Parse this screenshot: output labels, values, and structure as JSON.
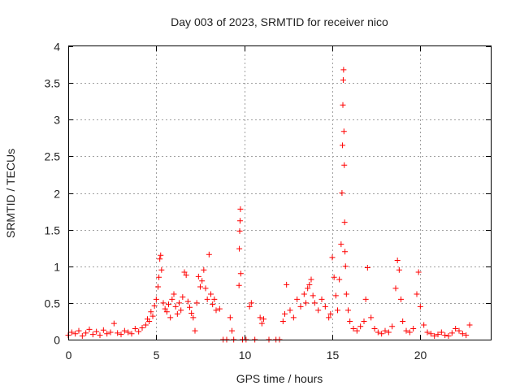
{
  "chart_data": {
    "type": "scatter",
    "title": "Day 003 of 2023, SRMTID for receiver nico",
    "xlabel": "GPS time / hours",
    "ylabel": "SRMTID / TECUs",
    "xlim": [
      0,
      24
    ],
    "ylim": [
      0,
      4
    ],
    "xticks": [
      0,
      5,
      10,
      15,
      20
    ],
    "xtick_labels": [
      "0",
      "5",
      "10",
      "15",
      "20"
    ],
    "yticks": [
      0,
      0.5,
      1,
      1.5,
      2,
      2.5,
      3,
      3.5,
      4
    ],
    "ytick_labels": [
      "0",
      "0.5",
      "1",
      "1.5",
      "2",
      "2.5",
      "3",
      "3.5",
      "4"
    ],
    "grid": true,
    "marker": "+",
    "series": [
      {
        "name": "SRMTID",
        "color": "#ff0000",
        "x": [
          0.0,
          0.2,
          0.4,
          0.6,
          0.8,
          1.0,
          1.2,
          1.4,
          1.6,
          1.8,
          2.0,
          2.2,
          2.4,
          2.6,
          2.8,
          3.0,
          3.2,
          3.4,
          3.6,
          3.8,
          4.0,
          4.2,
          4.4,
          4.5,
          4.6,
          4.7,
          4.8,
          4.9,
          5.0,
          5.1,
          5.15,
          5.2,
          5.25,
          5.3,
          5.4,
          5.5,
          5.6,
          5.7,
          5.8,
          5.9,
          6.0,
          6.1,
          6.2,
          6.3,
          6.4,
          6.5,
          6.6,
          6.7,
          6.8,
          6.9,
          7.0,
          7.1,
          7.2,
          7.3,
          7.4,
          7.5,
          7.6,
          7.7,
          7.8,
          7.9,
          8.0,
          8.1,
          8.2,
          8.3,
          8.4,
          8.6,
          9.2,
          9.3,
          9.7,
          9.72,
          9.74,
          9.76,
          9.78,
          9.8,
          10.3,
          10.4,
          10.9,
          11.0,
          11.1,
          12.2,
          12.3,
          12.4,
          12.6,
          12.8,
          13.0,
          13.2,
          13.4,
          13.5,
          13.6,
          13.7,
          13.8,
          13.9,
          14.0,
          14.2,
          14.4,
          14.6,
          14.8,
          14.9,
          15.0,
          15.1,
          15.2,
          15.3,
          15.4,
          15.5,
          15.55,
          15.58,
          15.6,
          15.62,
          15.64,
          15.66,
          15.68,
          15.7,
          15.72,
          15.75,
          15.8,
          15.9,
          16.0,
          16.2,
          16.4,
          16.6,
          16.8,
          16.9,
          17.0,
          17.2,
          17.4,
          17.6,
          17.8,
          18.0,
          18.2,
          18.4,
          18.6,
          18.7,
          18.8,
          18.9,
          19.0,
          19.2,
          19.4,
          19.6,
          19.8,
          19.9,
          20.0,
          20.2,
          20.4,
          20.6,
          20.8,
          21.0,
          21.2,
          21.4,
          21.6,
          21.8,
          22.0,
          22.2,
          22.4,
          22.6,
          22.8,
          8.8,
          9.0,
          9.4,
          9.9,
          10.1,
          10.6,
          11.4,
          11.8,
          12.0
        ],
        "y": [
          0.06,
          0.1,
          0.08,
          0.12,
          0.05,
          0.09,
          0.14,
          0.07,
          0.11,
          0.06,
          0.13,
          0.08,
          0.1,
          0.22,
          0.09,
          0.07,
          0.12,
          0.1,
          0.08,
          0.15,
          0.11,
          0.16,
          0.2,
          0.28,
          0.25,
          0.38,
          0.32,
          0.46,
          0.55,
          0.72,
          0.85,
          1.1,
          1.15,
          0.95,
          0.5,
          0.42,
          0.38,
          0.48,
          0.3,
          0.55,
          0.62,
          0.45,
          0.35,
          0.5,
          0.4,
          0.58,
          0.92,
          0.88,
          0.52,
          0.44,
          0.36,
          0.3,
          0.12,
          0.5,
          0.86,
          0.72,
          0.8,
          0.95,
          0.7,
          0.55,
          1.16,
          0.62,
          0.48,
          0.55,
          0.4,
          0.42,
          0.3,
          0.12,
          0.74,
          1.24,
          1.48,
          1.62,
          1.78,
          0.9,
          0.45,
          0.5,
          0.3,
          0.22,
          0.28,
          0.25,
          0.35,
          0.75,
          0.4,
          0.3,
          0.55,
          0.45,
          0.62,
          0.5,
          0.7,
          0.75,
          0.82,
          0.6,
          0.5,
          0.4,
          0.55,
          0.45,
          0.3,
          0.35,
          1.12,
          0.85,
          0.6,
          0.4,
          0.82,
          1.3,
          2.0,
          2.65,
          3.2,
          3.54,
          3.68,
          2.84,
          2.38,
          1.6,
          1.2,
          1.0,
          0.62,
          0.4,
          0.25,
          0.15,
          0.12,
          0.18,
          0.25,
          0.55,
          0.98,
          0.3,
          0.15,
          0.1,
          0.08,
          0.12,
          0.1,
          0.18,
          0.7,
          1.08,
          0.95,
          0.55,
          0.25,
          0.12,
          0.1,
          0.15,
          0.62,
          0.92,
          0.45,
          0.2,
          0.1,
          0.08,
          0.05,
          0.07,
          0.1,
          0.06,
          0.05,
          0.09,
          0.15,
          0.12,
          0.08,
          0.06,
          0.2,
          0.0,
          0.0,
          0.0,
          0.0,
          0.0,
          0.0,
          0.0,
          0.0,
          0.0
        ]
      }
    ]
  }
}
